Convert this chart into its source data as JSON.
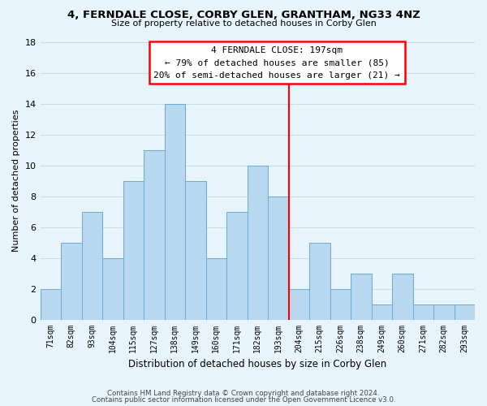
{
  "title": "4, FERNDALE CLOSE, CORBY GLEN, GRANTHAM, NG33 4NZ",
  "subtitle": "Size of property relative to detached houses in Corby Glen",
  "xlabel": "Distribution of detached houses by size in Corby Glen",
  "ylabel": "Number of detached properties",
  "bins": [
    "71sqm",
    "82sqm",
    "93sqm",
    "104sqm",
    "115sqm",
    "127sqm",
    "138sqm",
    "149sqm",
    "160sqm",
    "171sqm",
    "182sqm",
    "193sqm",
    "204sqm",
    "215sqm",
    "226sqm",
    "238sqm",
    "249sqm",
    "260sqm",
    "271sqm",
    "282sqm",
    "293sqm"
  ],
  "values": [
    2,
    5,
    7,
    4,
    9,
    11,
    14,
    9,
    4,
    7,
    10,
    8,
    2,
    5,
    2,
    3,
    1,
    3,
    1,
    1,
    1
  ],
  "bar_color": "#b8d8f0",
  "bar_edge_color": "#6aaad4",
  "vline_color": "red",
  "annotation_title": "4 FERNDALE CLOSE: 197sqm",
  "annotation_line1": "← 79% of detached houses are smaller (85)",
  "annotation_line2": "20% of semi-detached houses are larger (21) →",
  "annotation_box_color": "white",
  "annotation_box_edge": "red",
  "footer1": "Contains HM Land Registry data © Crown copyright and database right 2024.",
  "footer2": "Contains public sector information licensed under the Open Government Licence v3.0.",
  "ylim": [
    0,
    18
  ],
  "yticks": [
    0,
    2,
    4,
    6,
    8,
    10,
    12,
    14,
    16,
    18
  ],
  "grid_color": "#c8dce8",
  "background_color": "#e8f4fb"
}
